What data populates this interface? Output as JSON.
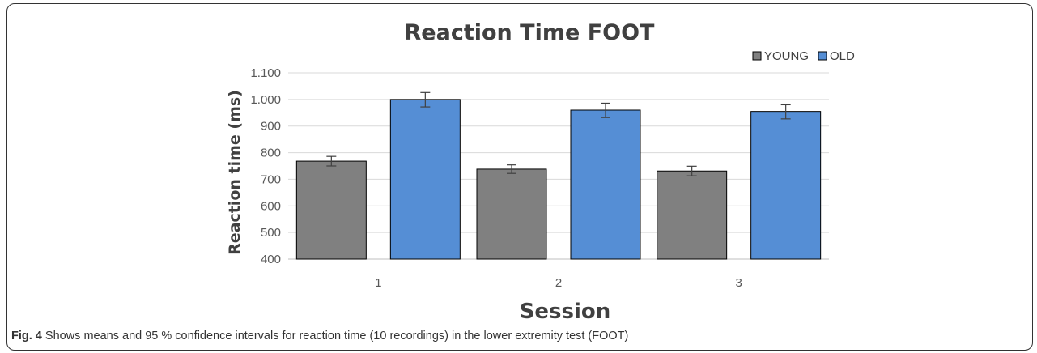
{
  "chart_data": {
    "type": "bar",
    "title": "Reaction Time FOOT",
    "xlabel": "Session",
    "ylabel": "Reaction time (ms)",
    "categories": [
      "1",
      "2",
      "3"
    ],
    "series": [
      {
        "name": "YOUNG",
        "color": "#808080",
        "values": [
          768,
          738,
          731
        ],
        "ci_low": [
          750,
          722,
          713
        ],
        "ci_high": [
          786,
          754,
          749
        ]
      },
      {
        "name": "OLD",
        "color": "#558ed5",
        "values": [
          1000,
          960,
          955
        ],
        "ci_low": [
          972,
          932,
          927
        ],
        "ci_high": [
          1026,
          986,
          980
        ]
      }
    ],
    "ylim": [
      400,
      1100
    ],
    "yticks": [
      "400",
      "500",
      "600",
      "700",
      "800",
      "900",
      "1.000",
      "1.100"
    ],
    "grid": true,
    "legend_position": "top-right"
  },
  "caption": {
    "label": "Fig. 4",
    "text": " Shows means and 95 % confidence intervals for reaction time (10 recordings) in the lower extremity test (FOOT)"
  }
}
